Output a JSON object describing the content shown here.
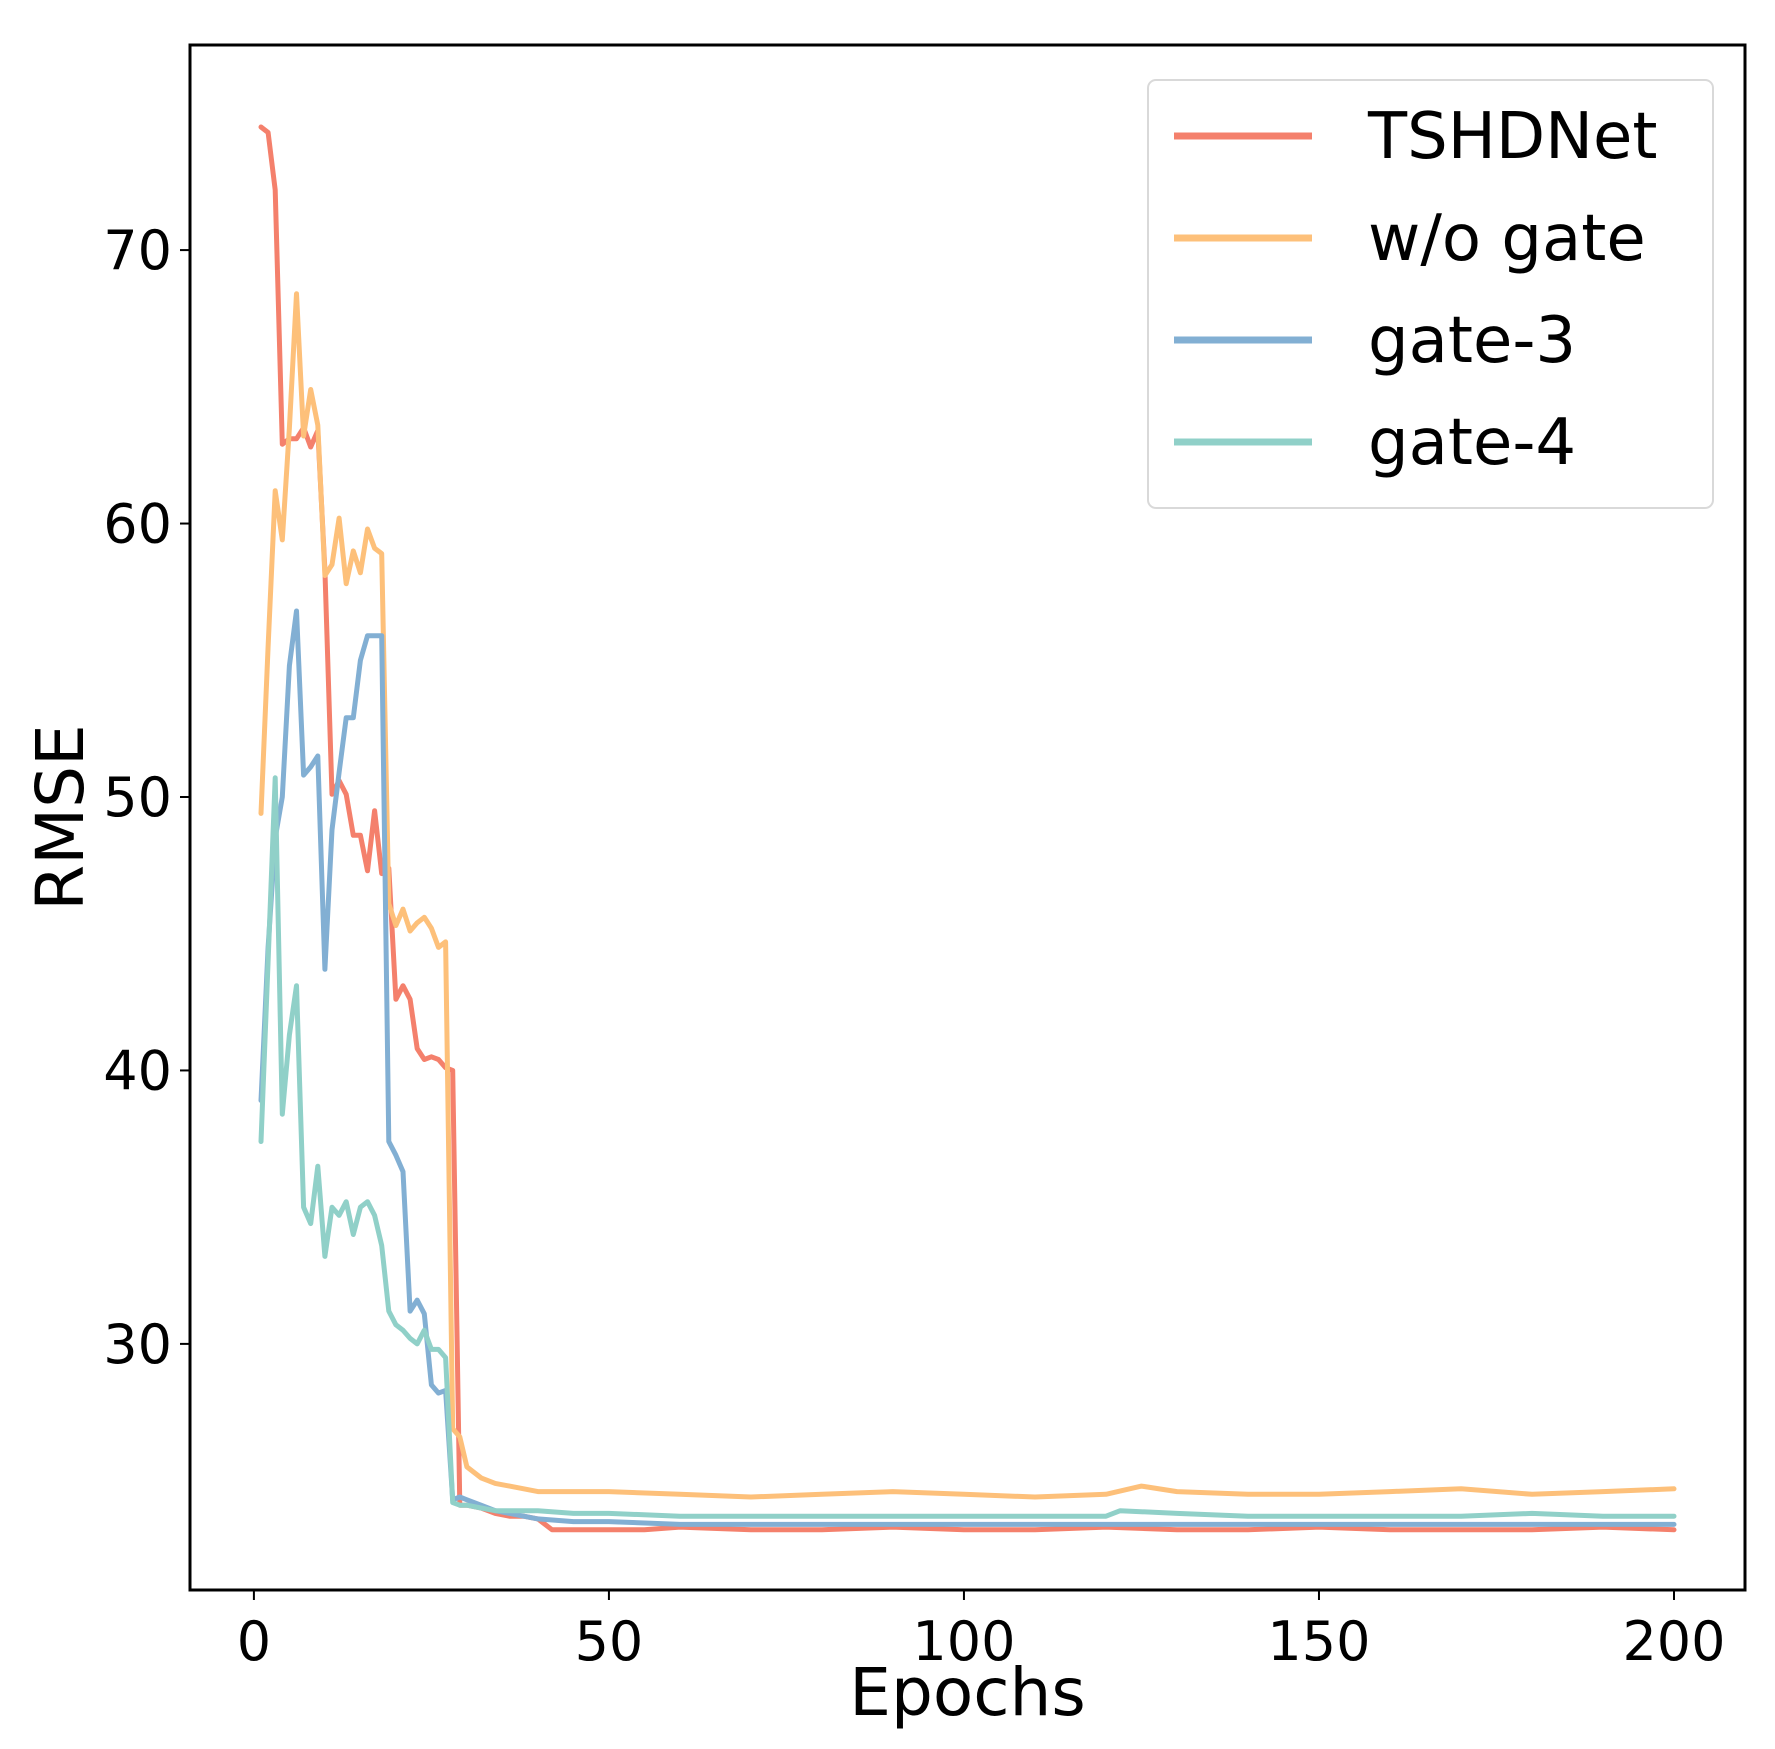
{
  "chart_data": {
    "type": "line",
    "xlabel": "Epochs",
    "ylabel": "RMSE",
    "xlim": [
      -9,
      210
    ],
    "ylim": [
      21.0,
      77.5
    ],
    "xticks": [
      0,
      50,
      100,
      150,
      200
    ],
    "yticks": [
      30,
      40,
      50,
      60,
      70
    ],
    "grid": false,
    "legend_position": "top-right",
    "series": [
      {
        "name": "TSHDNet",
        "color": "#F4806C",
        "points": [
          [
            1,
            74.5
          ],
          [
            2,
            74.3
          ],
          [
            3,
            72.2
          ],
          [
            4,
            62.9
          ],
          [
            5,
            63.1
          ],
          [
            6,
            63.1
          ],
          [
            7,
            63.5
          ],
          [
            8,
            62.8
          ],
          [
            9,
            63.4
          ],
          [
            10,
            58.3
          ],
          [
            11,
            50.1
          ],
          [
            12,
            50.6
          ],
          [
            13,
            50.1
          ],
          [
            14,
            48.6
          ],
          [
            15,
            48.6
          ],
          [
            16,
            47.3
          ],
          [
            17,
            49.5
          ],
          [
            18,
            47.2
          ],
          [
            19,
            47.4
          ],
          [
            20,
            42.6
          ],
          [
            21,
            43.1
          ],
          [
            22,
            42.6
          ],
          [
            23,
            40.8
          ],
          [
            24,
            40.4
          ],
          [
            25,
            40.5
          ],
          [
            26,
            40.4
          ],
          [
            27,
            40.1
          ],
          [
            28,
            40.0
          ],
          [
            29,
            24.1
          ],
          [
            30,
            24.1
          ],
          [
            32,
            24.0
          ],
          [
            34,
            23.8
          ],
          [
            36,
            23.7
          ],
          [
            38,
            23.7
          ],
          [
            40,
            23.6
          ],
          [
            42,
            23.2
          ],
          [
            45,
            23.2
          ],
          [
            50,
            23.2
          ],
          [
            55,
            23.2
          ],
          [
            60,
            23.3
          ],
          [
            70,
            23.2
          ],
          [
            80,
            23.2
          ],
          [
            90,
            23.3
          ],
          [
            100,
            23.2
          ],
          [
            110,
            23.2
          ],
          [
            120,
            23.3
          ],
          [
            130,
            23.2
          ],
          [
            140,
            23.2
          ],
          [
            150,
            23.3
          ],
          [
            160,
            23.2
          ],
          [
            170,
            23.2
          ],
          [
            180,
            23.2
          ],
          [
            190,
            23.3
          ],
          [
            200,
            23.2
          ]
        ]
      },
      {
        "name": "w/o gate",
        "color": "#FDC07A",
        "points": [
          [
            1,
            49.4
          ],
          [
            2,
            55.5
          ],
          [
            3,
            61.2
          ],
          [
            4,
            59.4
          ],
          [
            5,
            63.5
          ],
          [
            6,
            68.4
          ],
          [
            7,
            63.2
          ],
          [
            8,
            64.9
          ],
          [
            9,
            63.6
          ],
          [
            10,
            58.1
          ],
          [
            11,
            58.5
          ],
          [
            12,
            60.2
          ],
          [
            13,
            57.8
          ],
          [
            14,
            59.0
          ],
          [
            15,
            58.2
          ],
          [
            16,
            59.8
          ],
          [
            17,
            59.1
          ],
          [
            18,
            58.9
          ],
          [
            19,
            46.1
          ],
          [
            20,
            45.3
          ],
          [
            21,
            45.9
          ],
          [
            22,
            45.1
          ],
          [
            23,
            45.4
          ],
          [
            24,
            45.6
          ],
          [
            25,
            45.2
          ],
          [
            26,
            44.5
          ],
          [
            27,
            44.7
          ],
          [
            28,
            26.9
          ],
          [
            29,
            26.6
          ],
          [
            30,
            25.5
          ],
          [
            31,
            25.3
          ],
          [
            32,
            25.1
          ],
          [
            34,
            24.9
          ],
          [
            36,
            24.8
          ],
          [
            38,
            24.7
          ],
          [
            40,
            24.6
          ],
          [
            45,
            24.6
          ],
          [
            50,
            24.6
          ],
          [
            60,
            24.5
          ],
          [
            70,
            24.4
          ],
          [
            80,
            24.5
          ],
          [
            90,
            24.6
          ],
          [
            100,
            24.5
          ],
          [
            110,
            24.4
          ],
          [
            120,
            24.5
          ],
          [
            125,
            24.8
          ],
          [
            130,
            24.6
          ],
          [
            140,
            24.5
          ],
          [
            150,
            24.5
          ],
          [
            160,
            24.6
          ],
          [
            170,
            24.7
          ],
          [
            180,
            24.5
          ],
          [
            190,
            24.6
          ],
          [
            200,
            24.7
          ]
        ]
      },
      {
        "name": "gate-3",
        "color": "#82AFD3",
        "points": [
          [
            1,
            38.9
          ],
          [
            2,
            44.5
          ],
          [
            3,
            48.5
          ],
          [
            4,
            50.0
          ],
          [
            5,
            54.8
          ],
          [
            6,
            56.8
          ],
          [
            7,
            50.8
          ],
          [
            8,
            51.1
          ],
          [
            9,
            51.5
          ],
          [
            10,
            43.7
          ],
          [
            11,
            48.8
          ],
          [
            12,
            50.9
          ],
          [
            13,
            52.9
          ],
          [
            14,
            52.9
          ],
          [
            15,
            55.0
          ],
          [
            16,
            55.9
          ],
          [
            17,
            55.9
          ],
          [
            18,
            55.9
          ],
          [
            19,
            37.4
          ],
          [
            20,
            36.9
          ],
          [
            21,
            36.3
          ],
          [
            22,
            31.2
          ],
          [
            23,
            31.6
          ],
          [
            24,
            31.1
          ],
          [
            25,
            28.5
          ],
          [
            26,
            28.2
          ],
          [
            27,
            28.3
          ],
          [
            28,
            24.3
          ],
          [
            29,
            24.4
          ],
          [
            30,
            24.3
          ],
          [
            32,
            24.1
          ],
          [
            34,
            23.9
          ],
          [
            36,
            23.8
          ],
          [
            40,
            23.6
          ],
          [
            45,
            23.5
          ],
          [
            50,
            23.5
          ],
          [
            60,
            23.4
          ],
          [
            70,
            23.4
          ],
          [
            80,
            23.4
          ],
          [
            90,
            23.4
          ],
          [
            100,
            23.4
          ],
          [
            110,
            23.4
          ],
          [
            120,
            23.4
          ],
          [
            130,
            23.4
          ],
          [
            140,
            23.4
          ],
          [
            150,
            23.4
          ],
          [
            160,
            23.4
          ],
          [
            170,
            23.4
          ],
          [
            180,
            23.4
          ],
          [
            190,
            23.4
          ],
          [
            200,
            23.4
          ]
        ]
      },
      {
        "name": "gate-4",
        "color": "#90D0C8",
        "points": [
          [
            1,
            37.4
          ],
          [
            2,
            44.0
          ],
          [
            3,
            50.7
          ],
          [
            4,
            38.4
          ],
          [
            5,
            41.3
          ],
          [
            6,
            43.1
          ],
          [
            7,
            35.0
          ],
          [
            8,
            34.4
          ],
          [
            9,
            36.5
          ],
          [
            10,
            33.2
          ],
          [
            11,
            35.0
          ],
          [
            12,
            34.7
          ],
          [
            13,
            35.2
          ],
          [
            14,
            34.0
          ],
          [
            15,
            35.0
          ],
          [
            16,
            35.2
          ],
          [
            17,
            34.7
          ],
          [
            18,
            33.6
          ],
          [
            19,
            31.2
          ],
          [
            20,
            30.7
          ],
          [
            21,
            30.5
          ],
          [
            22,
            30.2
          ],
          [
            23,
            30.0
          ],
          [
            24,
            30.5
          ],
          [
            25,
            29.8
          ],
          [
            26,
            29.8
          ],
          [
            27,
            29.5
          ],
          [
            28,
            24.2
          ],
          [
            29,
            24.1
          ],
          [
            30,
            24.1
          ],
          [
            32,
            24.0
          ],
          [
            34,
            23.9
          ],
          [
            36,
            23.9
          ],
          [
            40,
            23.9
          ],
          [
            45,
            23.8
          ],
          [
            50,
            23.8
          ],
          [
            60,
            23.7
          ],
          [
            70,
            23.7
          ],
          [
            80,
            23.7
          ],
          [
            90,
            23.7
          ],
          [
            100,
            23.7
          ],
          [
            110,
            23.7
          ],
          [
            120,
            23.7
          ],
          [
            122,
            23.9
          ],
          [
            130,
            23.8
          ],
          [
            140,
            23.7
          ],
          [
            150,
            23.7
          ],
          [
            160,
            23.7
          ],
          [
            170,
            23.7
          ],
          [
            180,
            23.8
          ],
          [
            190,
            23.7
          ],
          [
            200,
            23.7
          ]
        ]
      }
    ]
  }
}
